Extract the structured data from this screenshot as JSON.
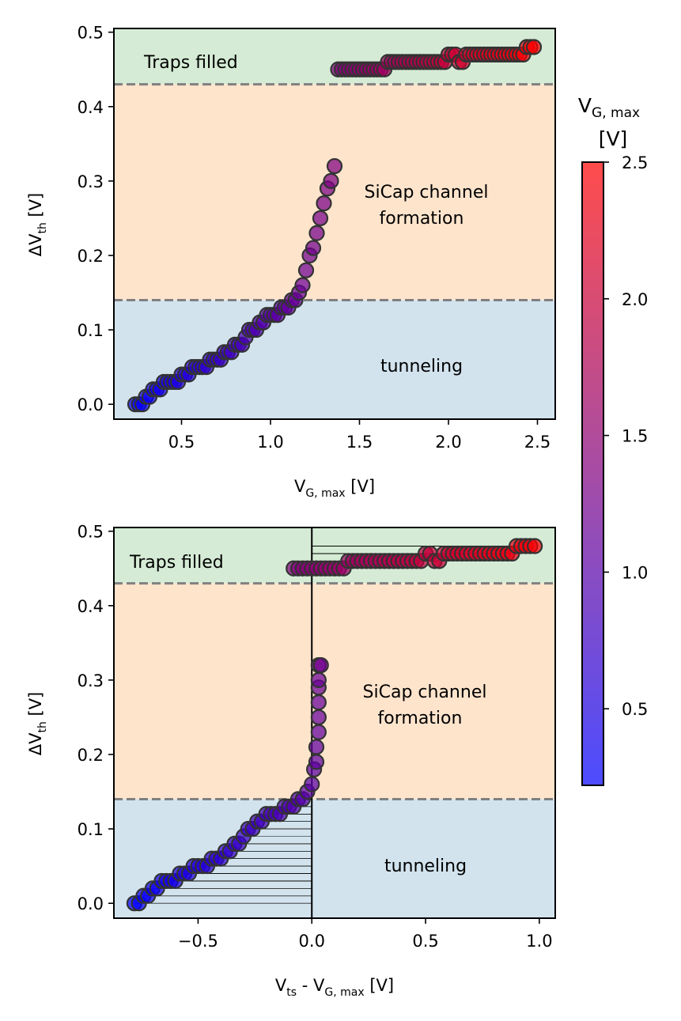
{
  "colorbar": {
    "title_main": "V",
    "title_sub": "G, max",
    "title_unit": "[V]",
    "range": [
      0.22,
      2.5
    ],
    "ticks": [
      "0.5",
      "1.0",
      "1.5",
      "2.0",
      "2.5"
    ],
    "tick_values": [
      0.5,
      1.0,
      1.5,
      2.0,
      2.5
    ],
    "color_low": "#0000ff",
    "color_high": "#ff0000"
  },
  "colors": {
    "traps_region": "#d5ebd5",
    "channel_region": "#ffe4cc",
    "tunneling_region": "#d2e3ee",
    "threshold_line": "#808080",
    "marker_edge": "#333333"
  },
  "chart_data": [
    {
      "type": "scatter",
      "xlabel_main": "V",
      "xlabel_sub": "G, max",
      "xlabel_unit": " [V]",
      "ylabel_main": "ΔV",
      "ylabel_sub": "th",
      "ylabel_unit": " [V]",
      "xlim": [
        0.12,
        2.6
      ],
      "ylim": [
        -0.02,
        0.505
      ],
      "xticks": [
        "0.5",
        "1.0",
        "1.5",
        "2.0",
        "2.5"
      ],
      "xtick_values": [
        0.5,
        1.0,
        1.5,
        2.0,
        2.5
      ],
      "yticks": [
        "0.0",
        "0.1",
        "0.2",
        "0.3",
        "0.4",
        "0.5"
      ],
      "ytick_values": [
        0.0,
        0.1,
        0.2,
        0.3,
        0.4,
        0.5
      ],
      "thresholds": [
        0.14,
        0.43
      ],
      "regions": {
        "top_label": "Traps filled",
        "middle_label_line1": "SiCap channel",
        "middle_label_line2": "formation",
        "bottom_label": "tunneling"
      },
      "x": [
        0.24,
        0.26,
        0.28,
        0.3,
        0.32,
        0.34,
        0.36,
        0.38,
        0.4,
        0.42,
        0.44,
        0.46,
        0.48,
        0.5,
        0.52,
        0.54,
        0.56,
        0.58,
        0.6,
        0.62,
        0.64,
        0.66,
        0.68,
        0.7,
        0.72,
        0.74,
        0.76,
        0.78,
        0.8,
        0.82,
        0.84,
        0.86,
        0.88,
        0.9,
        0.92,
        0.94,
        0.96,
        0.98,
        1.0,
        1.02,
        1.04,
        1.06,
        1.08,
        1.1,
        1.12,
        1.14,
        1.16,
        1.18,
        1.2,
        1.22,
        1.24,
        1.26,
        1.28,
        1.3,
        1.32,
        1.34,
        1.36,
        1.38,
        1.4,
        1.42,
        1.44,
        1.46,
        1.48,
        1.5,
        1.52,
        1.54,
        1.56,
        1.58,
        1.6,
        1.62,
        1.64,
        1.66,
        1.68,
        1.7,
        1.72,
        1.74,
        1.76,
        1.78,
        1.8,
        1.82,
        1.84,
        1.86,
        1.88,
        1.9,
        1.92,
        1.94,
        1.96,
        1.98,
        2.0,
        2.02,
        2.04,
        2.06,
        2.08,
        2.1,
        2.12,
        2.14,
        2.16,
        2.18,
        2.2,
        2.22,
        2.24,
        2.26,
        2.28,
        2.3,
        2.32,
        2.34,
        2.36,
        2.38,
        2.4,
        2.42,
        2.44,
        2.46,
        2.48
      ],
      "y": [
        0.0,
        0.0,
        0.0,
        0.01,
        0.01,
        0.02,
        0.02,
        0.02,
        0.03,
        0.03,
        0.03,
        0.03,
        0.03,
        0.04,
        0.04,
        0.04,
        0.05,
        0.05,
        0.05,
        0.05,
        0.05,
        0.06,
        0.06,
        0.06,
        0.06,
        0.07,
        0.07,
        0.07,
        0.08,
        0.08,
        0.08,
        0.09,
        0.1,
        0.1,
        0.1,
        0.11,
        0.11,
        0.12,
        0.12,
        0.12,
        0.12,
        0.13,
        0.13,
        0.13,
        0.14,
        0.14,
        0.15,
        0.16,
        0.18,
        0.2,
        0.21,
        0.23,
        0.25,
        0.27,
        0.29,
        0.3,
        0.32,
        0.45,
        0.45,
        0.45,
        0.45,
        0.45,
        0.45,
        0.45,
        0.45,
        0.45,
        0.45,
        0.45,
        0.45,
        0.45,
        0.45,
        0.46,
        0.46,
        0.46,
        0.46,
        0.46,
        0.46,
        0.46,
        0.46,
        0.46,
        0.46,
        0.46,
        0.46,
        0.46,
        0.46,
        0.46,
        0.46,
        0.46,
        0.47,
        0.47,
        0.47,
        0.46,
        0.46,
        0.47,
        0.47,
        0.47,
        0.47,
        0.47,
        0.47,
        0.47,
        0.47,
        0.47,
        0.47,
        0.47,
        0.47,
        0.47,
        0.47,
        0.47,
        0.47,
        0.47,
        0.48,
        0.48,
        0.48
      ]
    },
    {
      "type": "scatter",
      "xlabel_main": "V",
      "xlabel_sub": "ts",
      "xlabel_mid": " - V",
      "xlabel_sub2": "G, max",
      "xlabel_unit": " [V]",
      "ylabel_main": "ΔV",
      "ylabel_sub": "th",
      "ylabel_unit": " [V]",
      "xlim": [
        -0.87,
        1.07
      ],
      "ylim": [
        -0.02,
        0.505
      ],
      "xticks": [
        "−0.5",
        "0.0",
        "0.5",
        "1.0"
      ],
      "xtick_values": [
        -0.5,
        0.0,
        0.5,
        1.0
      ],
      "yticks": [
        "0.0",
        "0.1",
        "0.2",
        "0.3",
        "0.4",
        "0.5"
      ],
      "ytick_values": [
        0.0,
        0.1,
        0.2,
        0.3,
        0.4,
        0.5
      ],
      "thresholds": [
        0.14,
        0.43
      ],
      "zero_line_x": 0.0,
      "regions": {
        "top_label": "Traps filled",
        "middle_label_line1": "SiCap channel",
        "middle_label_line2": "formation",
        "bottom_label": "tunneling"
      },
      "x": [
        -0.78,
        -0.76,
        -0.74,
        -0.72,
        -0.7,
        -0.68,
        -0.66,
        -0.64,
        -0.62,
        -0.6,
        -0.58,
        -0.56,
        -0.54,
        -0.52,
        -0.5,
        -0.48,
        -0.46,
        -0.44,
        -0.42,
        -0.4,
        -0.38,
        -0.36,
        -0.34,
        -0.32,
        -0.3,
        -0.28,
        -0.26,
        -0.24,
        -0.22,
        -0.2,
        -0.18,
        -0.16,
        -0.14,
        -0.12,
        -0.1,
        -0.08,
        -0.06,
        -0.04,
        -0.02,
        0.0,
        0.01,
        0.02,
        0.02,
        0.03,
        0.03,
        0.03,
        0.03,
        0.03,
        0.03,
        0.04,
        -0.08,
        -0.06,
        -0.04,
        -0.02,
        0.0,
        0.02,
        0.04,
        0.06,
        0.08,
        0.1,
        0.12,
        0.14,
        0.16,
        0.18,
        0.2,
        0.22,
        0.24,
        0.26,
        0.28,
        0.3,
        0.32,
        0.34,
        0.36,
        0.38,
        0.4,
        0.42,
        0.44,
        0.46,
        0.48,
        0.5,
        0.52,
        0.54,
        0.56,
        0.58,
        0.6,
        0.62,
        0.64,
        0.66,
        0.68,
        0.7,
        0.72,
        0.74,
        0.76,
        0.78,
        0.8,
        0.82,
        0.84,
        0.86,
        0.88,
        0.9,
        0.92,
        0.94,
        0.96,
        0.98
      ],
      "y": [
        0.0,
        0.0,
        0.01,
        0.01,
        0.02,
        0.02,
        0.03,
        0.03,
        0.03,
        0.03,
        0.04,
        0.04,
        0.04,
        0.05,
        0.05,
        0.05,
        0.05,
        0.06,
        0.06,
        0.06,
        0.07,
        0.07,
        0.08,
        0.08,
        0.09,
        0.1,
        0.1,
        0.11,
        0.11,
        0.12,
        0.12,
        0.12,
        0.12,
        0.13,
        0.13,
        0.13,
        0.14,
        0.14,
        0.15,
        0.16,
        0.18,
        0.19,
        0.21,
        0.23,
        0.25,
        0.27,
        0.29,
        0.3,
        0.32,
        0.32,
        0.45,
        0.45,
        0.45,
        0.45,
        0.45,
        0.45,
        0.45,
        0.45,
        0.45,
        0.45,
        0.45,
        0.45,
        0.46,
        0.46,
        0.46,
        0.46,
        0.46,
        0.46,
        0.46,
        0.46,
        0.46,
        0.46,
        0.46,
        0.46,
        0.46,
        0.46,
        0.46,
        0.46,
        0.46,
        0.47,
        0.47,
        0.46,
        0.46,
        0.47,
        0.47,
        0.47,
        0.47,
        0.47,
        0.47,
        0.47,
        0.47,
        0.47,
        0.47,
        0.47,
        0.47,
        0.47,
        0.47,
        0.47,
        0.47,
        0.48,
        0.48,
        0.48,
        0.48,
        0.48
      ],
      "c": [
        0.24,
        0.26,
        0.28,
        0.3,
        0.32,
        0.34,
        0.36,
        0.38,
        0.4,
        0.42,
        0.44,
        0.46,
        0.48,
        0.5,
        0.52,
        0.54,
        0.56,
        0.58,
        0.6,
        0.62,
        0.64,
        0.66,
        0.68,
        0.7,
        0.72,
        0.74,
        0.76,
        0.78,
        0.8,
        0.82,
        0.84,
        0.86,
        0.88,
        0.9,
        0.92,
        0.94,
        0.96,
        0.98,
        1.0,
        1.02,
        1.04,
        1.06,
        1.08,
        1.1,
        1.12,
        1.14,
        1.16,
        1.18,
        1.2,
        1.22,
        1.38,
        1.4,
        1.42,
        1.44,
        1.46,
        1.48,
        1.5,
        1.52,
        1.54,
        1.56,
        1.58,
        1.6,
        1.62,
        1.64,
        1.66,
        1.68,
        1.7,
        1.72,
        1.74,
        1.76,
        1.78,
        1.8,
        1.82,
        1.84,
        1.86,
        1.88,
        1.9,
        1.92,
        1.94,
        1.96,
        1.98,
        2.0,
        2.02,
        2.04,
        2.06,
        2.08,
        2.1,
        2.12,
        2.14,
        2.16,
        2.18,
        2.2,
        2.22,
        2.24,
        2.26,
        2.28,
        2.3,
        2.32,
        2.34,
        2.36,
        2.38,
        2.4,
        2.42,
        2.46
      ]
    }
  ]
}
